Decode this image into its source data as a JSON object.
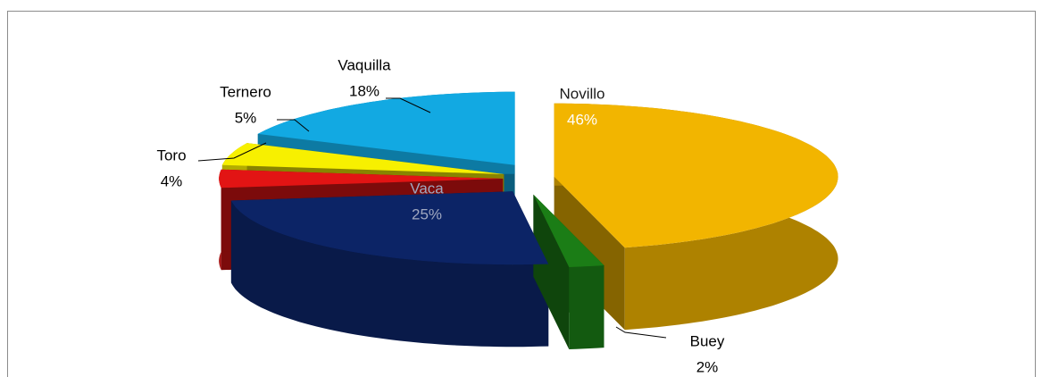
{
  "chart_data": {
    "type": "pie",
    "categories": [
      "Novillo",
      "Buey",
      "Vaca",
      "Toro",
      "Ternero",
      "Vaquilla"
    ],
    "values": [
      46,
      2,
      25,
      4,
      5,
      18
    ],
    "value_labels": [
      "46%",
      "2%",
      "25%",
      "4%",
      "5%",
      "18%"
    ],
    "colors": [
      "#f2b500",
      "#1b7d16",
      "#0c2466",
      "#e21414",
      "#f7f000",
      "#12a9e2"
    ]
  }
}
